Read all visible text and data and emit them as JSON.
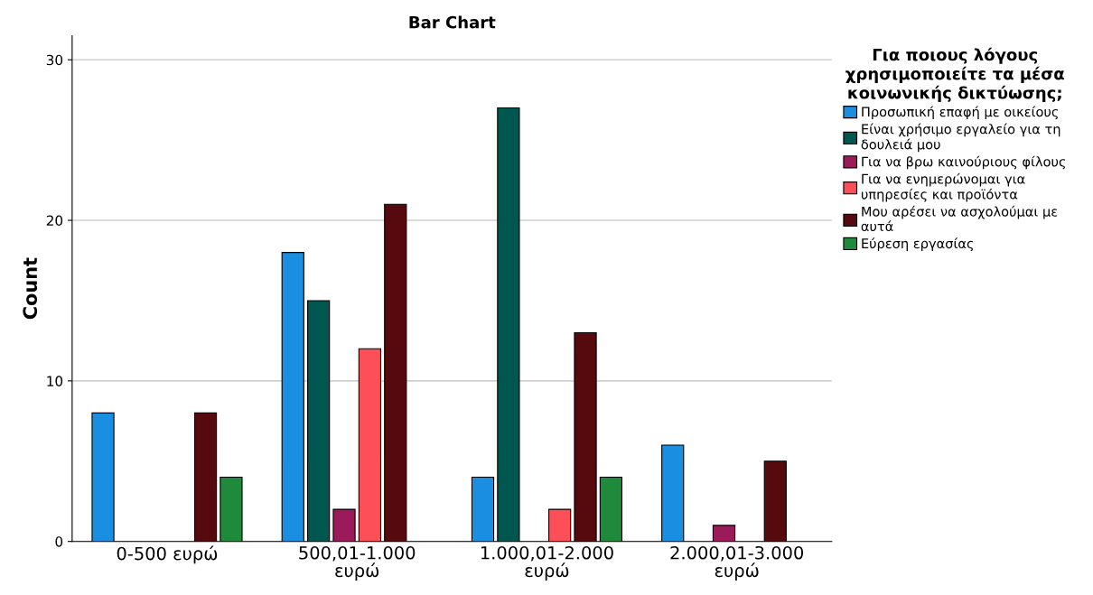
{
  "chart_data": {
    "type": "bar",
    "title": "Bar Chart",
    "ylabel": "Count",
    "categories": [
      "0-500 ευρώ",
      "500,01-1.000\nευρώ",
      "1.000,01-2.000\nευρώ",
      "2.000,01-3.000\nευρώ"
    ],
    "series": [
      {
        "name": "Προσωπική επαφή με οικείους",
        "color": "#1a8ee0",
        "values": [
          8,
          18,
          4,
          6
        ]
      },
      {
        "name": "Είναι χρήσιμο εργαλείο για τη\nδουλειά μου",
        "color": "#00574f",
        "values": [
          null,
          15,
          27,
          null
        ]
      },
      {
        "name": "Για να βρω καινούριους φίλους",
        "color": "#9b1b5a",
        "values": [
          null,
          2,
          null,
          1
        ]
      },
      {
        "name": "Για να ενημερώνομαι για\nυπηρεσίες και προϊόντα",
        "color": "#fd4f58",
        "values": [
          null,
          12,
          2,
          null
        ]
      },
      {
        "name": "Μου αρέσει να ασχολούμαι με\nαυτά",
        "color": "#560a0e",
        "values": [
          8,
          21,
          13,
          5
        ]
      },
      {
        "name": "Εύρεση εργασίας",
        "color": "#1f8a3c",
        "values": [
          4,
          null,
          4,
          null
        ]
      }
    ],
    "legend_title": "Για ποιους λόγους\nχρησιμοποιείτε τα μέσα\nκοινωνικής δικτύωσης;",
    "legend": "right",
    "ylim": [
      0,
      31.5
    ],
    "yticks": [
      0,
      10,
      20,
      30
    ],
    "grid": "y"
  }
}
